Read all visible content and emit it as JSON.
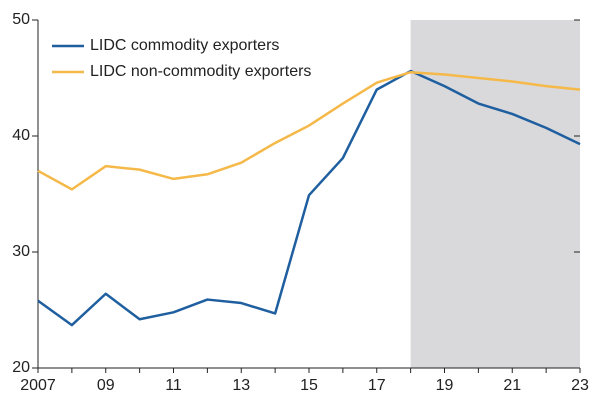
{
  "chart_data": {
    "type": "line",
    "categories": [
      "2007",
      null,
      "09",
      null,
      "11",
      null,
      "13",
      null,
      "15",
      null,
      "17",
      null,
      "19",
      null,
      "21",
      null,
      "23"
    ],
    "series": [
      {
        "name": "LIDC commodity exporters",
        "color": "#1f5fa0",
        "values": [
          25.8,
          23.7,
          26.4,
          24.2,
          24.8,
          25.9,
          25.6,
          24.7,
          34.9,
          38.1,
          44.0,
          45.6,
          44.3,
          42.8,
          41.9,
          40.7,
          39.3
        ]
      },
      {
        "name": "LIDC non-commodity exporters",
        "color": "#f5b94a",
        "values": [
          37.0,
          35.4,
          37.4,
          37.1,
          36.3,
          36.7,
          37.7,
          39.4,
          40.9,
          42.8,
          44.6,
          45.5,
          45.3,
          45.0,
          44.7,
          44.3,
          44.0
        ]
      }
    ],
    "ylim": [
      20,
      50
    ],
    "yticks": [
      20,
      30,
      40,
      50
    ]
  }
}
